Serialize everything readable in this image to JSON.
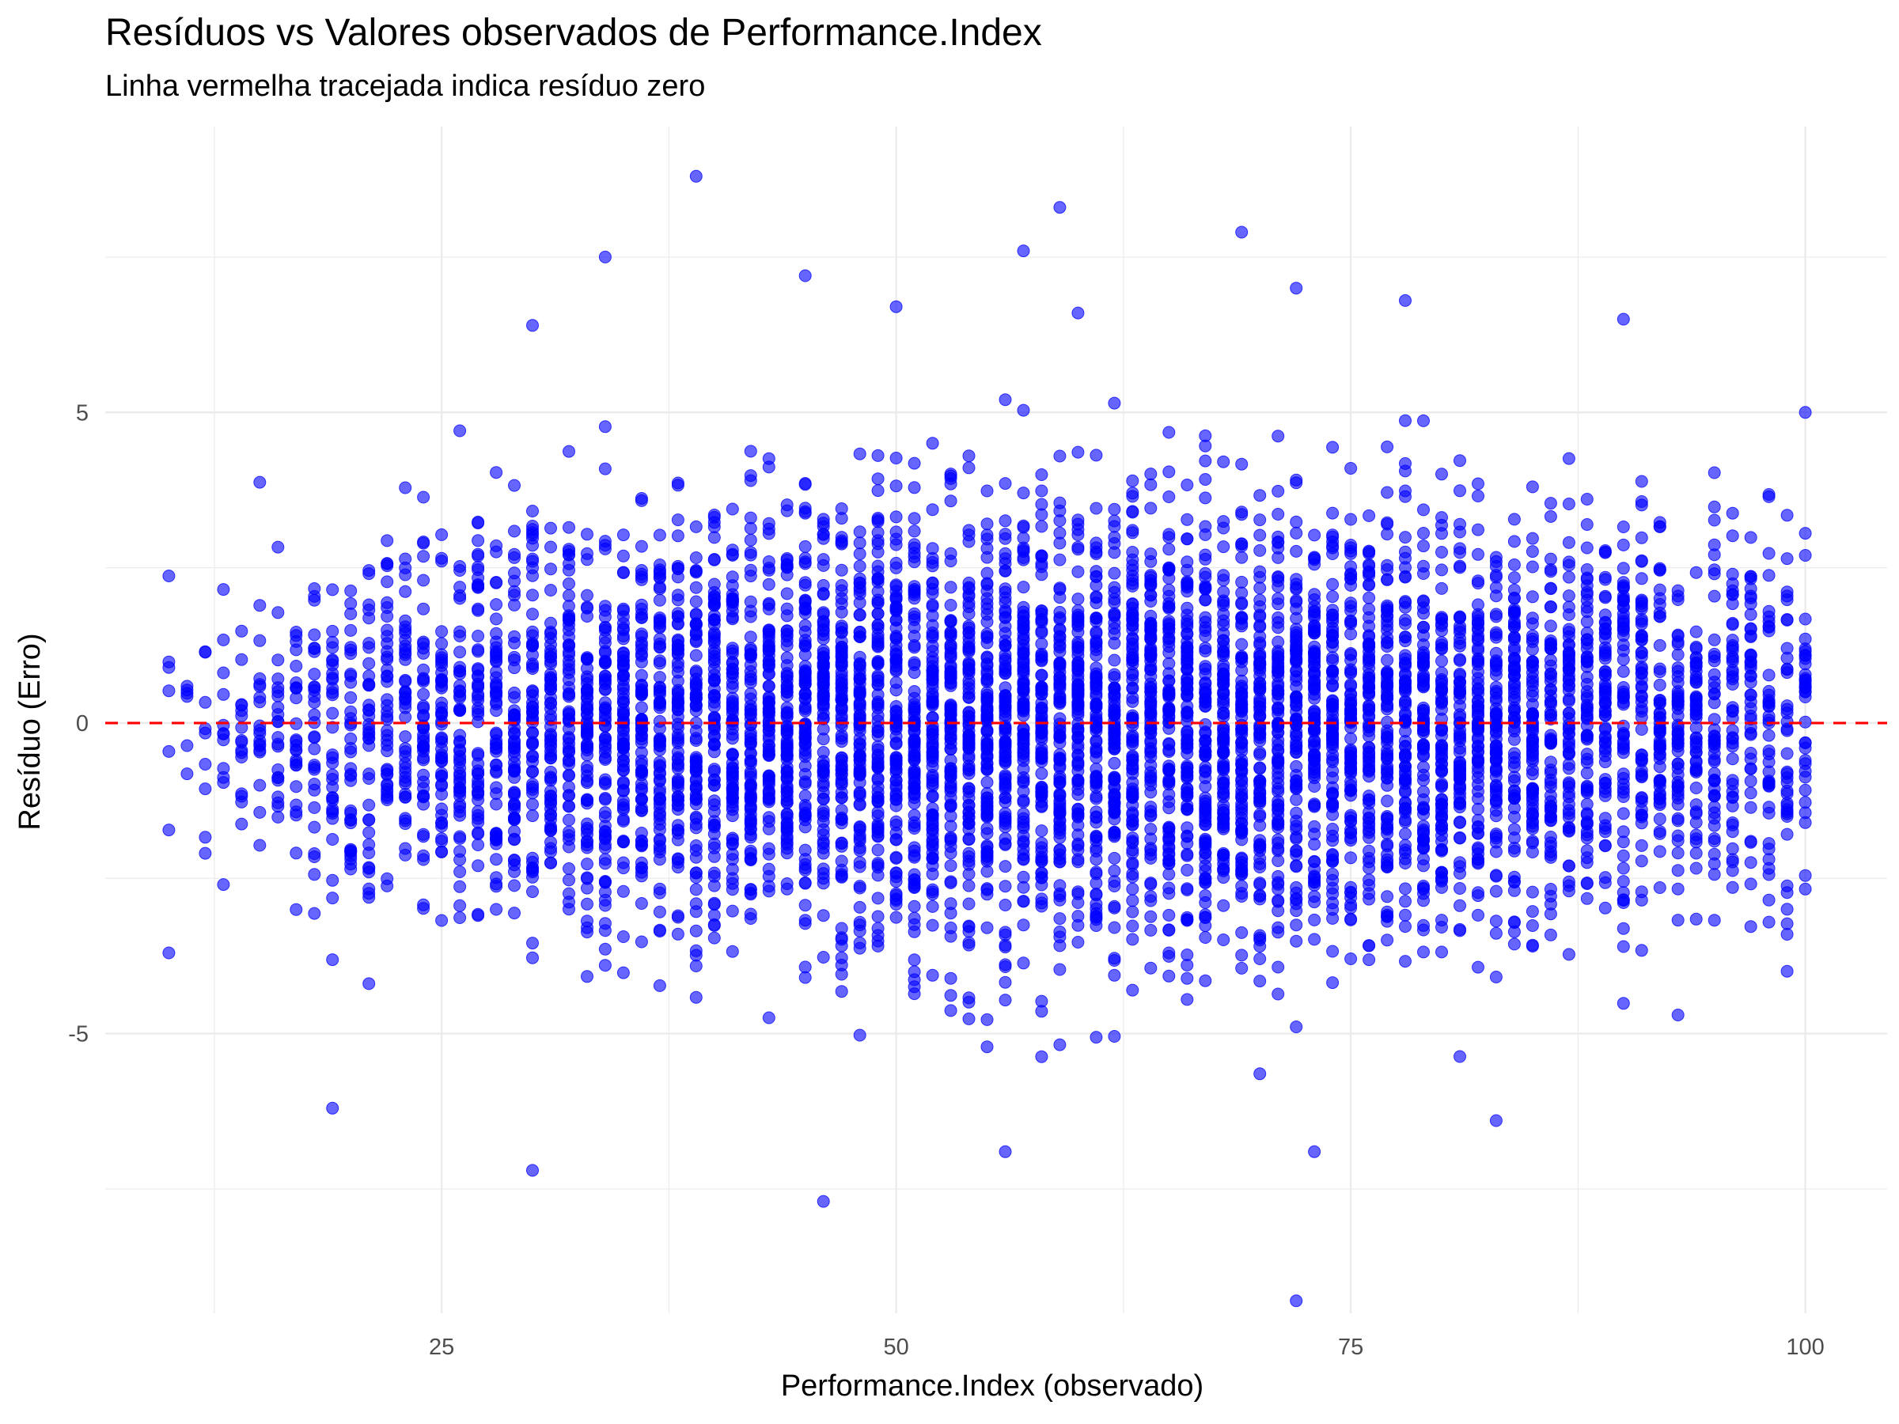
{
  "title": "Resíduos vs Valores observados de Performance.Index",
  "subtitle": "Linha vermelha tracejada indica resíduo zero",
  "chart_data": {
    "type": "scatter",
    "title": "Resíduos vs Valores observados de Performance.Index",
    "subtitle": "Linha vermelha tracejada indica resíduo zero",
    "xlabel": "Performance.Index (observado)",
    "ylabel": "Resíduo (Erro)",
    "xlim": [
      6.5,
      104.5
    ],
    "ylim": [
      -9.5,
      9.6
    ],
    "x_ticks": [
      25,
      50,
      75,
      100
    ],
    "x_tick_labels": [
      "25",
      "50",
      "75",
      "100"
    ],
    "y_ticks": [
      -5,
      0,
      5
    ],
    "y_tick_labels": [
      "-5",
      "0",
      "5"
    ],
    "grid": true,
    "legend": "none",
    "point_color": "#0000ff",
    "point_opacity": 0.6,
    "reference_line": {
      "y": 0,
      "color": "#ff0000",
      "style": "dashed"
    },
    "x_domain": [
      10,
      100
    ],
    "distribution_note": "Dense vertical columns of points at integer Performance.Index values from 10 to 100; residuals mostly within about -4 to 4, widest spread near x = 40–75, narrower near the ends.",
    "notable_points": [
      {
        "x": 39,
        "y": 8.8
      },
      {
        "x": 59,
        "y": 8.3
      },
      {
        "x": 69,
        "y": 7.9
      },
      {
        "x": 57,
        "y": 7.6
      },
      {
        "x": 34,
        "y": 7.5
      },
      {
        "x": 45,
        "y": 7.2
      },
      {
        "x": 72,
        "y": 7.0
      },
      {
        "x": 78,
        "y": 6.8
      },
      {
        "x": 50,
        "y": 6.7
      },
      {
        "x": 60,
        "y": 6.6
      },
      {
        "x": 90,
        "y": 6.5
      },
      {
        "x": 30,
        "y": 6.4
      },
      {
        "x": 100,
        "y": 5.0
      },
      {
        "x": 10,
        "y": -3.7
      },
      {
        "x": 19,
        "y": -6.2
      },
      {
        "x": 30,
        "y": -7.2
      },
      {
        "x": 46,
        "y": -7.7
      },
      {
        "x": 56,
        "y": -6.9
      },
      {
        "x": 72,
        "y": -9.3
      },
      {
        "x": 73,
        "y": -6.9
      },
      {
        "x": 83,
        "y": -6.4
      },
      {
        "x": 93,
        "y": -4.7
      }
    ]
  }
}
